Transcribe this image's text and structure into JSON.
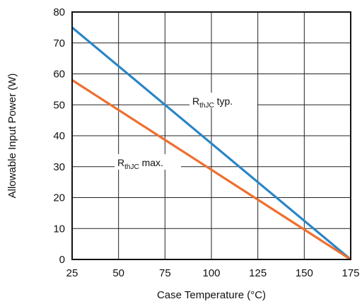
{
  "chart_data": {
    "type": "line",
    "xlabel": "Case Temperature (°C)",
    "ylabel": "Allowable Input Power (W)",
    "xlim": [
      25,
      175
    ],
    "ylim": [
      0,
      80
    ],
    "xticks": [
      25,
      50,
      75,
      100,
      125,
      150,
      175
    ],
    "yticks": [
      0,
      10,
      20,
      30,
      40,
      50,
      60,
      70,
      80
    ],
    "grid": true,
    "series": [
      {
        "name": "R_thJC typ.",
        "label_main": "R",
        "label_sub": "thJC",
        "label_tail": " typ.",
        "color": "#2a86c8",
        "x": [
          25,
          175
        ],
        "y": [
          75,
          0
        ]
      },
      {
        "name": "R_thJC max.",
        "label_main": "R",
        "label_sub": "thJC",
        "label_tail": " max.",
        "color": "#ee6f2d",
        "x": [
          25,
          175
        ],
        "y": [
          58,
          0
        ]
      }
    ]
  }
}
